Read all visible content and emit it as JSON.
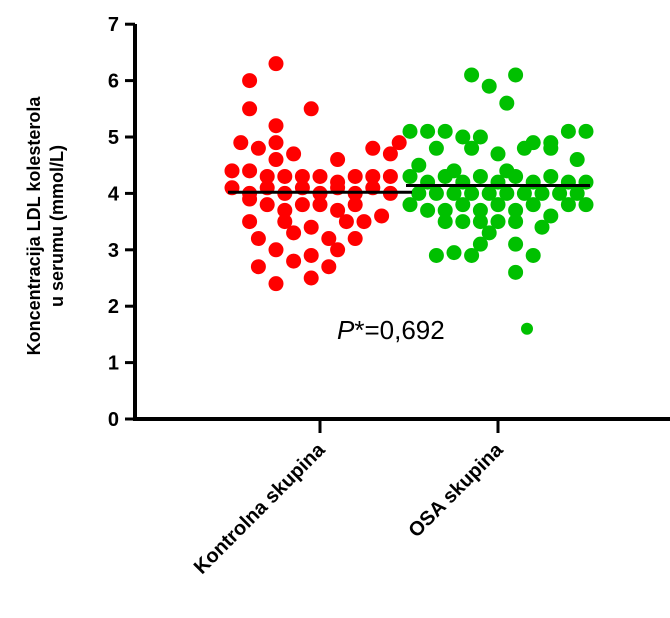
{
  "chart_data": {
    "type": "scatter",
    "ylabel_line1": "Koncentracija LDL kolesterola",
    "ylabel_line2": "u serumu (mmol/L)",
    "ylim": [
      0,
      7
    ],
    "yticks": [
      "0",
      "1",
      "2",
      "3",
      "4",
      "5",
      "6",
      "7"
    ],
    "categories": [
      "Kontrolna skupina",
      "OSA skupina"
    ],
    "annotation": {
      "prefix": "P",
      "suffix": "*=0,692"
    },
    "series": [
      {
        "category": "Kontrolna skupina",
        "color": "#ff0000",
        "median": 4.02,
        "points": [
          [
            -0.5,
            6.3
          ],
          [
            -0.8,
            6.0
          ],
          [
            -0.8,
            5.5
          ],
          [
            -0.1,
            5.5
          ],
          [
            -0.5,
            5.2
          ],
          [
            -0.9,
            4.9
          ],
          [
            -0.5,
            4.9
          ],
          [
            0.9,
            4.9
          ],
          [
            -0.7,
            4.8
          ],
          [
            0.6,
            4.8
          ],
          [
            -0.3,
            4.7
          ],
          [
            -0.5,
            4.6
          ],
          [
            0.2,
            4.6
          ],
          [
            0.8,
            4.7
          ],
          [
            -1.0,
            4.4
          ],
          [
            -0.8,
            4.4
          ],
          [
            -0.6,
            4.3
          ],
          [
            -0.4,
            4.3
          ],
          [
            -0.2,
            4.3
          ],
          [
            0.0,
            4.3
          ],
          [
            0.2,
            4.2
          ],
          [
            0.4,
            4.3
          ],
          [
            0.6,
            4.3
          ],
          [
            0.8,
            4.3
          ],
          [
            -1.0,
            4.1
          ],
          [
            -0.8,
            4.0
          ],
          [
            -0.6,
            4.1
          ],
          [
            -0.4,
            4.0
          ],
          [
            -0.2,
            4.1
          ],
          [
            0.0,
            4.0
          ],
          [
            0.2,
            4.1
          ],
          [
            0.4,
            4.0
          ],
          [
            0.6,
            4.1
          ],
          [
            0.8,
            4.0
          ],
          [
            -0.8,
            3.9
          ],
          [
            -0.6,
            3.8
          ],
          [
            -0.4,
            3.7
          ],
          [
            -0.2,
            3.8
          ],
          [
            0.0,
            3.8
          ],
          [
            0.2,
            3.7
          ],
          [
            0.4,
            3.8
          ],
          [
            0.7,
            3.6
          ],
          [
            -0.8,
            3.5
          ],
          [
            -0.4,
            3.5
          ],
          [
            -0.1,
            3.4
          ],
          [
            0.3,
            3.5
          ],
          [
            0.5,
            3.5
          ],
          [
            -0.7,
            3.2
          ],
          [
            -0.3,
            3.3
          ],
          [
            0.1,
            3.2
          ],
          [
            0.4,
            3.2
          ],
          [
            -0.5,
            3.0
          ],
          [
            -0.1,
            2.9
          ],
          [
            0.2,
            3.0
          ],
          [
            -0.3,
            2.8
          ],
          [
            -0.7,
            2.7
          ],
          [
            0.1,
            2.7
          ],
          [
            -0.1,
            2.5
          ],
          [
            -0.5,
            2.4
          ]
        ]
      },
      {
        "category": "OSA skupina",
        "color": "#00c000",
        "median": 4.14,
        "points": [
          [
            -0.3,
            6.1
          ],
          [
            0.2,
            6.1
          ],
          [
            -0.1,
            5.9
          ],
          [
            0.1,
            5.6
          ],
          [
            -1.0,
            5.1
          ],
          [
            -0.8,
            5.1
          ],
          [
            -0.6,
            5.1
          ],
          [
            -0.4,
            5.0
          ],
          [
            -0.2,
            5.0
          ],
          [
            0.4,
            4.9
          ],
          [
            0.6,
            4.9
          ],
          [
            0.8,
            5.1
          ],
          [
            1.0,
            5.1
          ],
          [
            -0.7,
            4.8
          ],
          [
            -0.3,
            4.8
          ],
          [
            0.0,
            4.7
          ],
          [
            0.3,
            4.8
          ],
          [
            0.6,
            4.8
          ],
          [
            0.9,
            4.6
          ],
          [
            -0.9,
            4.5
          ],
          [
            -0.5,
            4.4
          ],
          [
            0.1,
            4.4
          ],
          [
            -1.0,
            4.3
          ],
          [
            -0.8,
            4.2
          ],
          [
            -0.6,
            4.3
          ],
          [
            -0.4,
            4.2
          ],
          [
            -0.2,
            4.3
          ],
          [
            0.0,
            4.2
          ],
          [
            0.2,
            4.3
          ],
          [
            0.4,
            4.2
          ],
          [
            0.6,
            4.3
          ],
          [
            0.8,
            4.2
          ],
          [
            1.0,
            4.2
          ],
          [
            -0.9,
            4.0
          ],
          [
            -0.7,
            4.0
          ],
          [
            -0.5,
            4.0
          ],
          [
            -0.3,
            4.0
          ],
          [
            -0.1,
            4.0
          ],
          [
            0.1,
            4.0
          ],
          [
            0.3,
            4.0
          ],
          [
            0.5,
            4.0
          ],
          [
            0.7,
            4.0
          ],
          [
            0.9,
            4.0
          ],
          [
            -1.0,
            3.8
          ],
          [
            -0.8,
            3.7
          ],
          [
            -0.6,
            3.7
          ],
          [
            -0.4,
            3.8
          ],
          [
            -0.2,
            3.7
          ],
          [
            0.0,
            3.8
          ],
          [
            0.2,
            3.7
          ],
          [
            0.4,
            3.8
          ],
          [
            0.6,
            3.6
          ],
          [
            0.8,
            3.8
          ],
          [
            1.0,
            3.8
          ],
          [
            -0.6,
            3.5
          ],
          [
            -0.4,
            3.5
          ],
          [
            -0.2,
            3.5
          ],
          [
            0.0,
            3.5
          ],
          [
            0.2,
            3.5
          ],
          [
            0.5,
            3.4
          ],
          [
            -0.1,
            3.3
          ],
          [
            -0.2,
            3.1
          ],
          [
            0.2,
            3.1
          ],
          [
            -0.5,
            2.95
          ],
          [
            -0.3,
            2.9
          ],
          [
            -0.7,
            2.9
          ],
          [
            0.4,
            2.9
          ],
          [
            0.2,
            2.6
          ]
        ],
        "outlier": 1.6
      }
    ]
  }
}
